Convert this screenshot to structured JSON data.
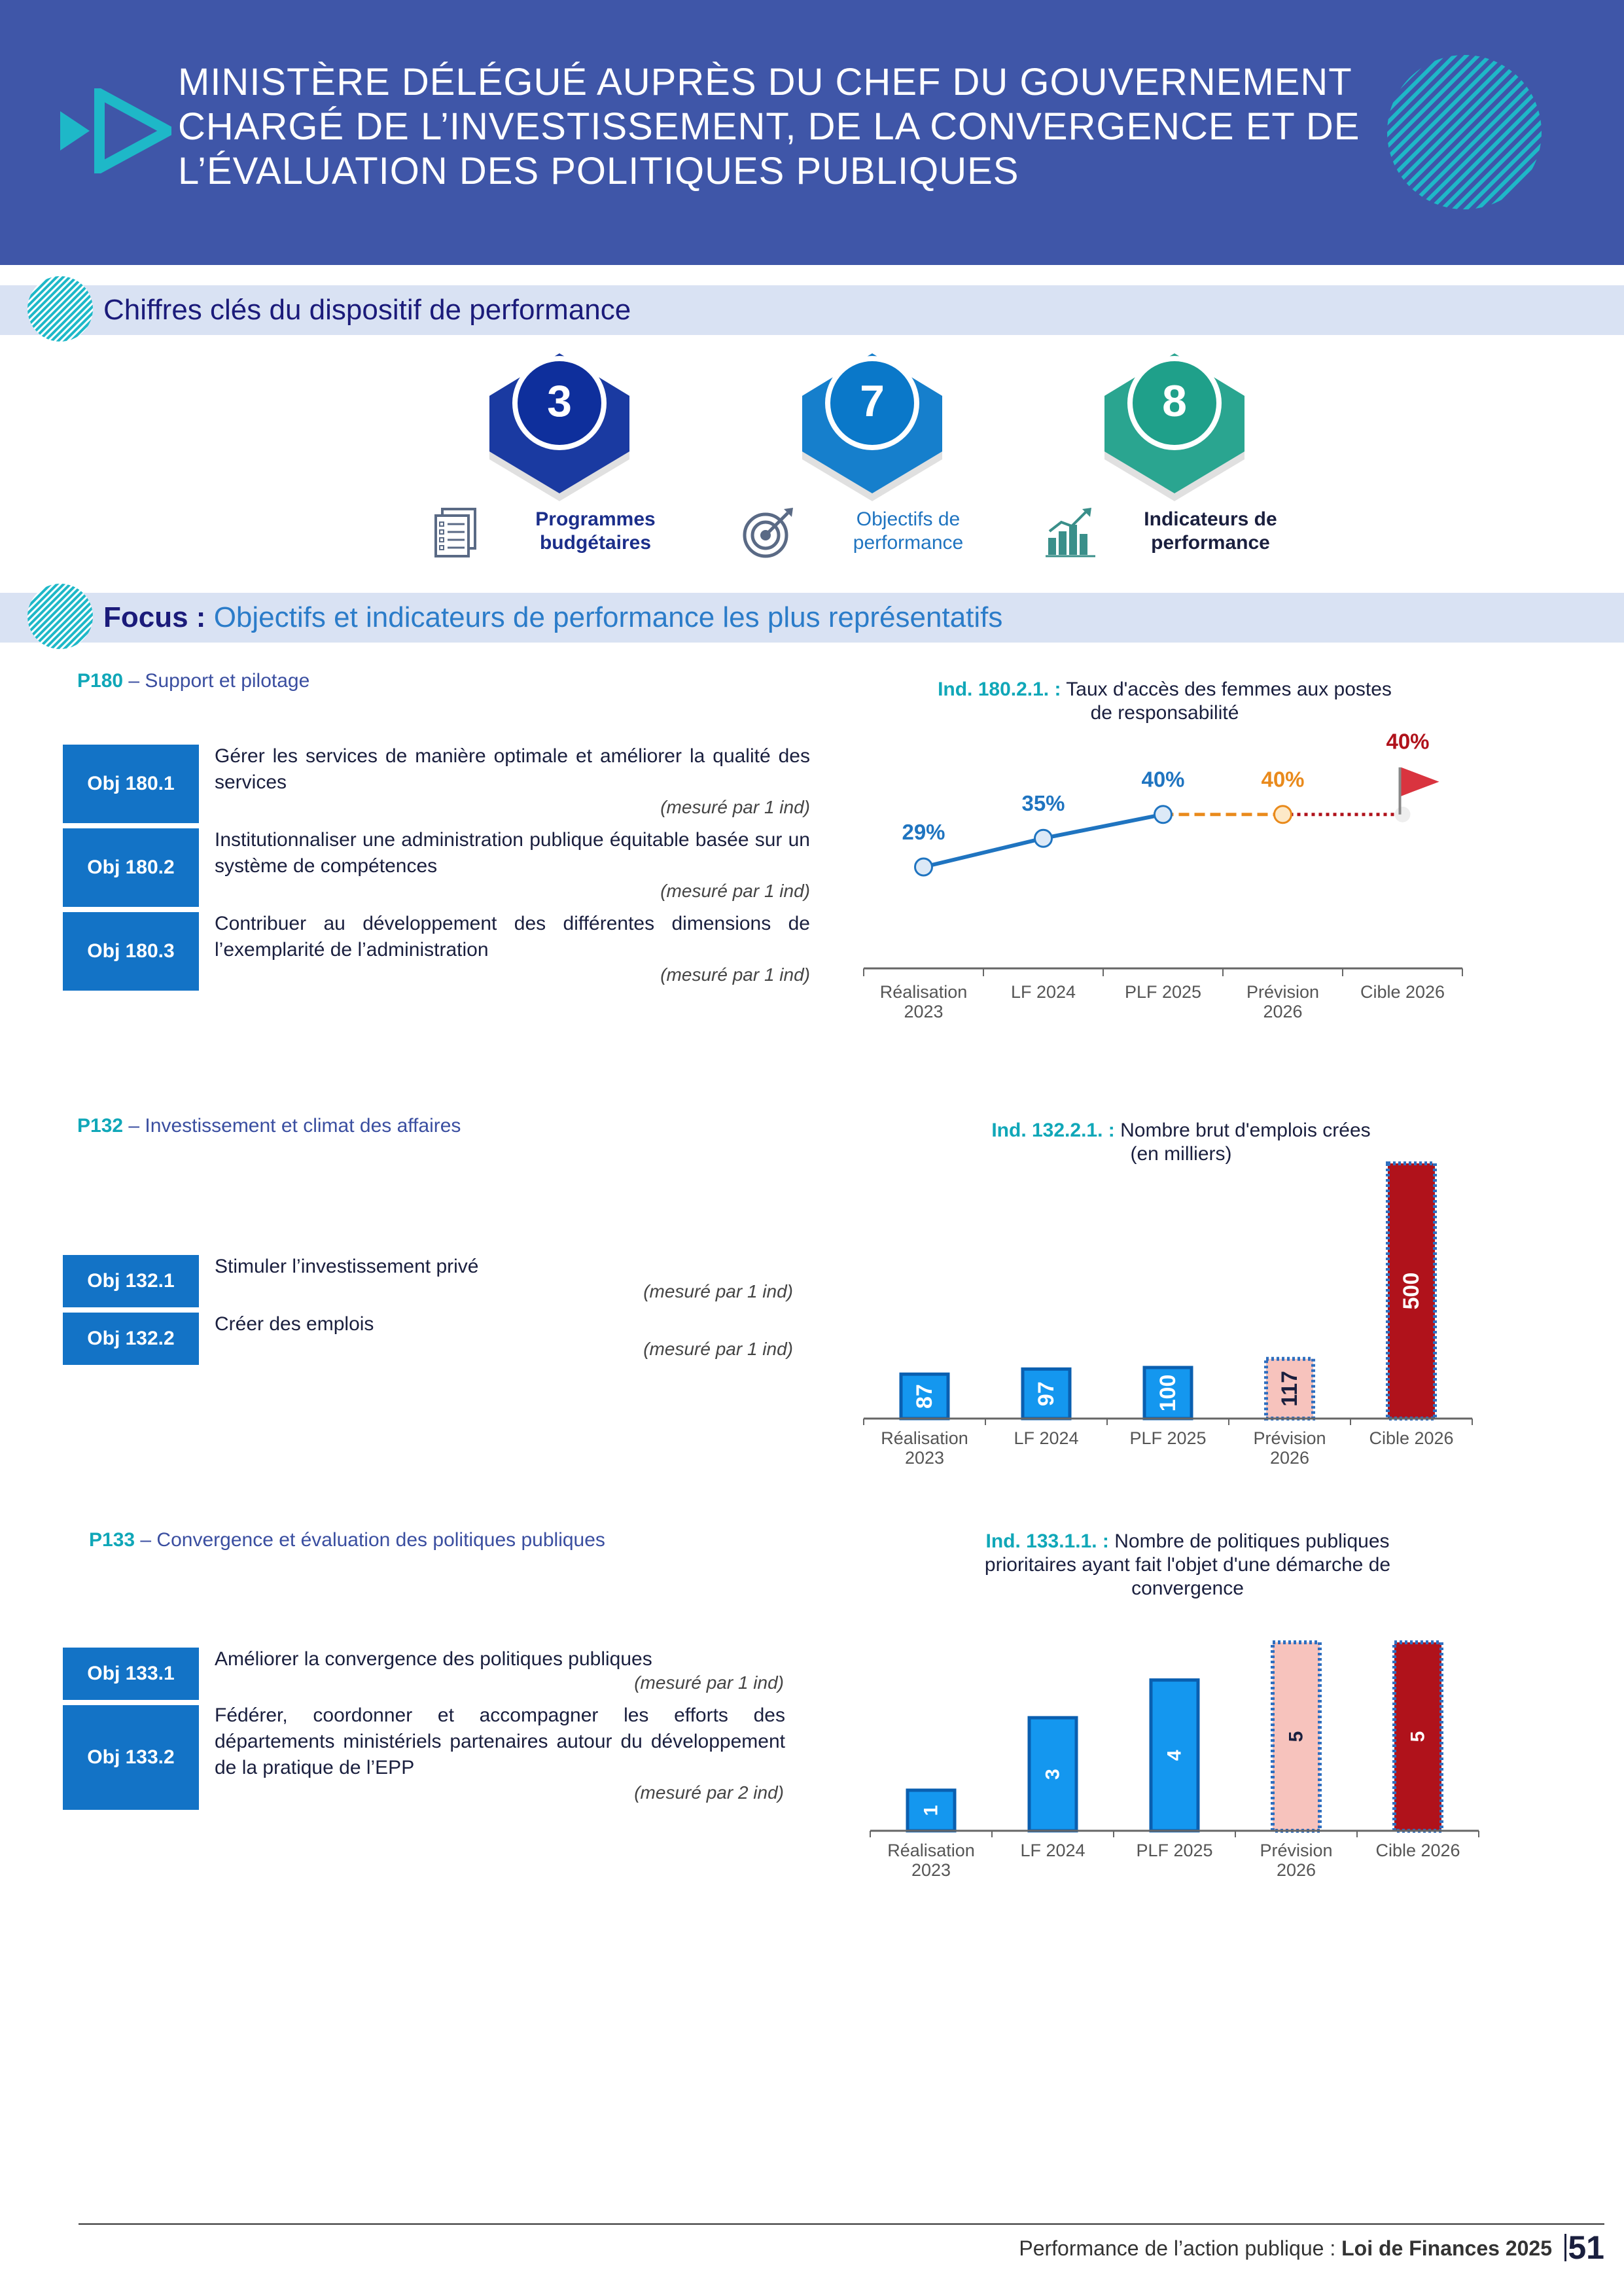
{
  "header": {
    "title": "MINISTÈRE DÉLÉGUÉ AUPRÈS DU CHEF DU GOUVERNEMENT CHARGÉ DE L’INVESTISSEMENT, DE LA CONVERGENCE ET DE L’ÉVALUATION DES POLITIQUES PUBLIQUES"
  },
  "key_figures_section": {
    "title": "Chiffres clés du dispositif de performance"
  },
  "key_figures": [
    {
      "value": "3",
      "label_line1": "Programmes",
      "label_line2": "budgétaires",
      "color": "#0e2f9c",
      "icon": "documents-icon"
    },
    {
      "value": "7",
      "label_line1": "Objectifs de",
      "label_line2": "performance",
      "color": "#0a78c9",
      "icon": "target-icon"
    },
    {
      "value": "8",
      "label_line1": "Indicateurs de",
      "label_line2": "performance",
      "color": "#1fa08a",
      "icon": "bar-chart-icon"
    }
  ],
  "focus_section": {
    "prefix": "Focus : ",
    "title": "Objectifs et indicateurs de performance les plus représentatifs"
  },
  "programs": [
    {
      "code": "P180",
      "name": " – Support et pilotage",
      "objectives": [
        {
          "label": "Obj 180.1",
          "text": "Gérer les services de manière optimale et améliorer la qualité des services",
          "measure": "(mesuré par 1 ind)"
        },
        {
          "label": "Obj 180.2",
          "text": "Institutionnaliser une administration publique équitable basée sur un système de compétences",
          "measure": "(mesuré par 1 ind)"
        },
        {
          "label": "Obj 180.3",
          "text": "Contribuer au développement des différentes dimensions de l’exemplarité de l’administration",
          "measure": "(mesuré par 1 ind)"
        }
      ],
      "chart_title_ind": "Ind. 180.2.1. :",
      "chart_title_line1": "Taux d'accès des femmes aux postes",
      "chart_title_line2": "de responsabilité"
    },
    {
      "code": "P132",
      "name": " – Investissement et climat des affaires",
      "objectives": [
        {
          "label": "Obj 132.1",
          "text": "Stimuler l’investissement privé",
          "measure": "(mesuré par 1 ind)"
        },
        {
          "label": "Obj 132.2",
          "text": "Créer des emplois",
          "measure": "(mesuré par 1 ind)"
        }
      ],
      "chart_title_ind": "Ind. 132.2.1. :",
      "chart_title_line1": "Nombre brut d'emplois crées",
      "chart_title_line2": "(en milliers)"
    },
    {
      "code": "P133",
      "name": " – Convergence et évaluation des politiques publiques",
      "objectives": [
        {
          "label": "Obj 133.1",
          "text": "Améliorer la convergence des politiques publiques",
          "measure": "(mesuré par 1 ind)"
        },
        {
          "label": "Obj 133.2",
          "text": "Fédérer, coordonner et accompagner les efforts des départements ministériels partenaires autour du développement de la pratique de l’EPP",
          "measure": "(mesuré par 2 ind)"
        }
      ],
      "chart_title_ind": "Ind. 133.1.1. :",
      "chart_title_line1": "Nombre de politiques publiques",
      "chart_title_line2": "prioritaires ayant fait l'objet d'une démarche de",
      "chart_title_line3": "convergence"
    }
  ],
  "chart_data": [
    {
      "type": "line",
      "categories": [
        "Réalisation 2023",
        "LF 2024",
        "PLF 2025",
        "Prévision 2026",
        "Cible 2026"
      ],
      "category_lines": [
        [
          "Réalisation",
          "2023"
        ],
        [
          "LF 2024"
        ],
        [
          "PLF 2025"
        ],
        [
          "Prévision",
          "2026"
        ],
        [
          "Cible 2026"
        ]
      ],
      "values": [
        29,
        35,
        40,
        40,
        40
      ],
      "value_labels": [
        "29%",
        "35%",
        "40%",
        "40%",
        "40%"
      ],
      "series_styles": [
        "actual",
        "actual",
        "actual",
        "forecast",
        "target"
      ],
      "colors": {
        "actual": "#1f74c0",
        "forecast": "#e98a1c",
        "target": "#b0121b"
      }
    },
    {
      "type": "bar",
      "categories": [
        "Réalisation 2023",
        "LF 2024",
        "PLF 2025",
        "Prévision 2026",
        "Cible 2026"
      ],
      "category_lines": [
        [
          "Réalisation",
          "2023"
        ],
        [
          "LF 2024"
        ],
        [
          "PLF 2025"
        ],
        [
          "Prévision",
          "2026"
        ],
        [
          "Cible 2026"
        ]
      ],
      "values": [
        87,
        97,
        100,
        117,
        500
      ],
      "value_labels": [
        "87",
        "97",
        "100",
        "117",
        "500"
      ],
      "bar_styles": [
        "actual",
        "actual",
        "actual",
        "forecast",
        "target"
      ],
      "colors": {
        "actual": "#1497ef",
        "forecast": "#f7c3bd",
        "target": "#b0121b"
      }
    },
    {
      "type": "bar",
      "categories": [
        "Réalisation 2023",
        "LF 2024",
        "PLF 2025",
        "Prévision 2026",
        "Cible 2026"
      ],
      "category_lines": [
        [
          "Réalisation",
          "2023"
        ],
        [
          "LF 2024"
        ],
        [
          "PLF 2025"
        ],
        [
          "Prévision",
          "2026"
        ],
        [
          "Cible 2026"
        ]
      ],
      "values": [
        1,
        3,
        4,
        5,
        5
      ],
      "value_labels": [
        "1",
        "3",
        "4",
        "5",
        "5"
      ],
      "bar_styles": [
        "actual",
        "actual",
        "actual",
        "forecast",
        "target"
      ],
      "colors": {
        "actual": "#1497ef",
        "forecast": "#f7c3bd",
        "target": "#b0121b"
      }
    }
  ],
  "footer": {
    "text": "Performance de l’action publique : ",
    "bold": "Loi de Finances 2025",
    "page": "51"
  }
}
